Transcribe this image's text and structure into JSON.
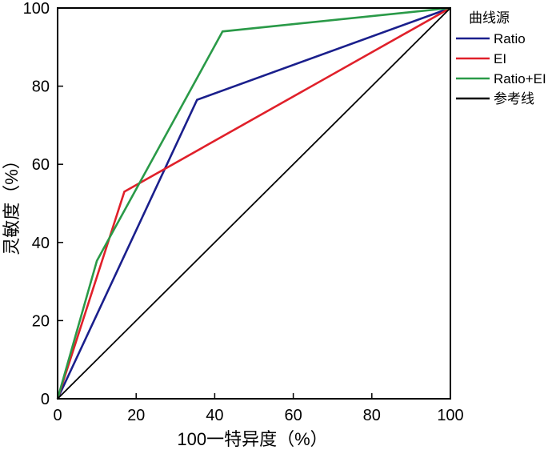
{
  "chart_data": {
    "type": "line",
    "title": "",
    "xlabel": "100一特异度（%）",
    "ylabel": "灵敏度（%）",
    "xlim": [
      0,
      100
    ],
    "ylim": [
      0,
      100
    ],
    "xticks": [
      0,
      20,
      40,
      60,
      80,
      100
    ],
    "yticks": [
      0,
      20,
      40,
      60,
      80,
      100
    ],
    "grid": false,
    "legend": {
      "title": "曲线源",
      "placement": "right"
    },
    "series": [
      {
        "name": "Ratio",
        "color": "#1a1f8c",
        "points": [
          [
            0,
            0
          ],
          [
            35.5,
            76.5
          ],
          [
            100,
            100
          ]
        ]
      },
      {
        "name": "EI",
        "color": "#e0202a",
        "points": [
          [
            0,
            0
          ],
          [
            17,
            53
          ],
          [
            100,
            100
          ]
        ]
      },
      {
        "name": "Ratio+EI",
        "color": "#2a9a48",
        "points": [
          [
            0,
            0
          ],
          [
            10,
            35.3
          ],
          [
            42,
            94
          ],
          [
            100,
            100
          ]
        ]
      },
      {
        "name": "参考线",
        "color": "#000000",
        "points": [
          [
            0,
            0
          ],
          [
            100,
            100
          ]
        ]
      }
    ]
  }
}
